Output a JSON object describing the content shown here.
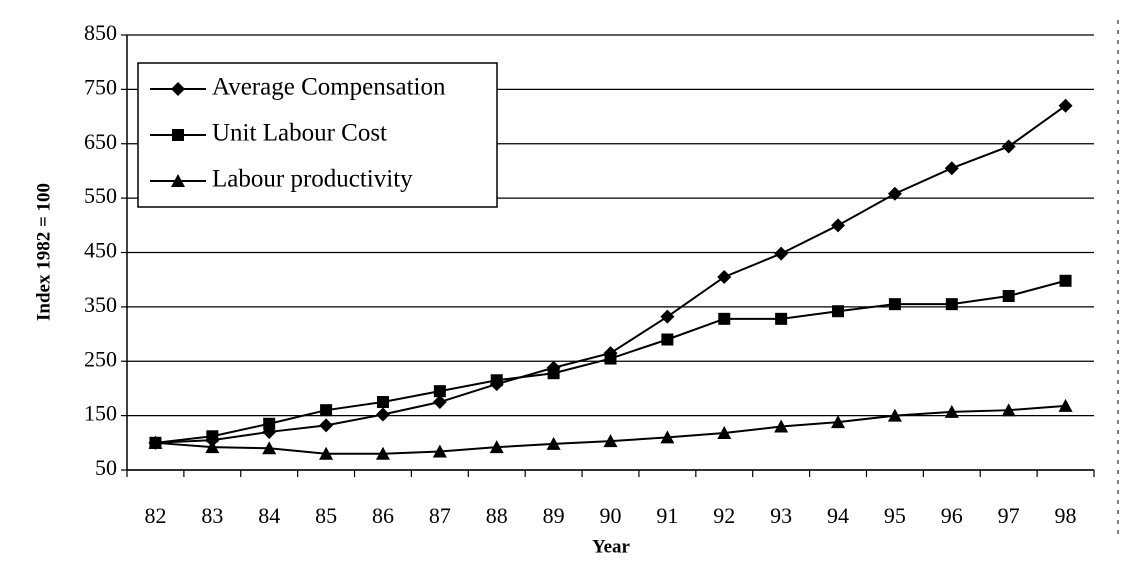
{
  "chart_data": {
    "type": "line",
    "x_label": "Year",
    "y_label": "Index 1982 = 100",
    "categories": [
      "82",
      "83",
      "84",
      "85",
      "86",
      "87",
      "88",
      "89",
      "90",
      "91",
      "92",
      "93",
      "94",
      "95",
      "96",
      "97",
      "98"
    ],
    "series": [
      {
        "name": "Average Compensation",
        "color": "#000000",
        "marker": "diamond",
        "values": [
          100,
          105,
          120,
          132,
          152,
          175,
          208,
          238,
          265,
          332,
          405,
          448,
          500,
          558,
          605,
          645,
          720
        ]
      },
      {
        "name": "Unit Labour Cost",
        "color": "#000000",
        "marker": "square",
        "values": [
          100,
          112,
          135,
          160,
          175,
          195,
          215,
          228,
          255,
          290,
          328,
          328,
          342,
          355,
          355,
          370,
          398
        ]
      },
      {
        "name": "Labour productivity",
        "color": "#000000",
        "marker": "triangle",
        "values": [
          100,
          92,
          90,
          80,
          80,
          84,
          92,
          98,
          103,
          110,
          118,
          130,
          138,
          150,
          157,
          160,
          168
        ]
      }
    ],
    "ylim": [
      50,
      850
    ],
    "yticks": [
      50,
      150,
      250,
      350,
      450,
      550,
      650,
      750,
      850
    ],
    "grid": true,
    "legend": "upper left"
  }
}
